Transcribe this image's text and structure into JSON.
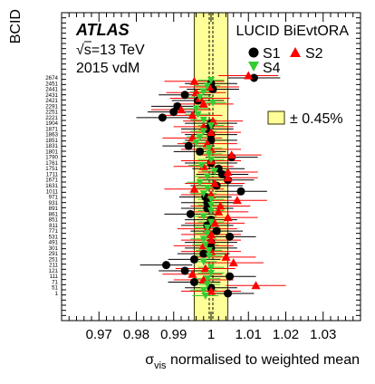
{
  "chart_data": {
    "type": "scatter",
    "ylabel": "BCID",
    "xlabel": "σ",
    "xlabel_sub": "vis",
    "xlabel_rest": " normalised to weighted mean",
    "xlim": [
      0.96,
      1.04
    ],
    "xticks": [
      0.97,
      0.98,
      0.99,
      1,
      1.01,
      1.02,
      1.03
    ],
    "xtick_labels": [
      "0.97",
      "0.98",
      "0.99",
      "1",
      "1.01",
      "1.02",
      "1.03"
    ],
    "band": {
      "center": 1,
      "half_width": 0.0045,
      "label": "± 0.45%"
    },
    "annotations": {
      "experiment": "ATLAS",
      "energy_prefix": "√",
      "energy_rest": "s=13 TeV",
      "dataset": "2015 vdM",
      "algorithm": "LUCID BiEvtORA"
    },
    "legend": {
      "s1": "S1",
      "s2": "S2",
      "s4": "S4"
    },
    "bcids": [
      "2674",
      "2451",
      "2441",
      "2431",
      "2421",
      "2291",
      "2251",
      "2221",
      "1904",
      "1871",
      "1863",
      "1851",
      "1831",
      "1801",
      "1790",
      "1761",
      "1751",
      "1711",
      "1671",
      "1631",
      "1011",
      "971",
      "931",
      "891",
      "861",
      "851",
      "811",
      "771",
      "531",
      "491",
      "301",
      "291",
      "251",
      "211",
      "121",
      "111",
      "71",
      "51",
      "1"
    ],
    "series": [
      {
        "name": "S1",
        "x": [
          1.0115,
          1.0,
          1.0005,
          0.993,
          0.9965,
          0.991,
          0.99,
          0.987,
          1.0,
          0.999,
          1.0,
          1.0,
          0.994,
          0.997,
          1.0055,
          1.0,
          1.002,
          1.003,
          1.0045,
          1.0015,
          1.008,
          0.9985,
          0.999,
          0.999,
          0.9945,
          1.0,
          0.999,
          1.0015,
          1.005,
          1.0,
          1.0,
          0.998,
          0.9955,
          0.988,
          0.993,
          1.005,
          0.9955,
          1.0,
          1.0045
        ]
      },
      {
        "name": "S2",
        "x": [
          1.01,
          0.9955,
          0.9995,
          0.996,
          0.997,
          0.998,
          0.992,
          0.995,
          1.0005,
          0.998,
          1.0,
          0.995,
          0.999,
          1.0,
          1.0055,
          1.0,
          0.998,
          1.0045,
          1.0045,
          1.001,
          0.9955,
          1.0,
          1.007,
          1.0025,
          1.002,
          1.0045,
          1.001,
          0.999,
          1.0,
          1.0,
          0.998,
          1.0,
          1.004,
          1.006,
          0.9985,
          0.995,
          0.998,
          1.012,
          1.0
        ]
      },
      {
        "name": "S4",
        "x": [
          1.0,
          0.999,
          0.998,
          0.997,
          1.0005,
          0.996,
          0.9965,
          0.998,
          1.0,
          0.998,
          0.997,
          0.996,
          0.9995,
          0.9995,
          1.0,
          0.9975,
          1.001,
          0.999,
          0.997,
          0.999,
          0.998,
          1.0,
          1.0,
          1.0,
          0.998,
          1.0,
          0.999,
          0.999,
          0.998,
          0.9985,
          0.9995,
          0.9995,
          0.998,
          1.0,
          1.0,
          0.999,
          0.999,
          0.998,
          0.9985
        ]
      }
    ]
  }
}
